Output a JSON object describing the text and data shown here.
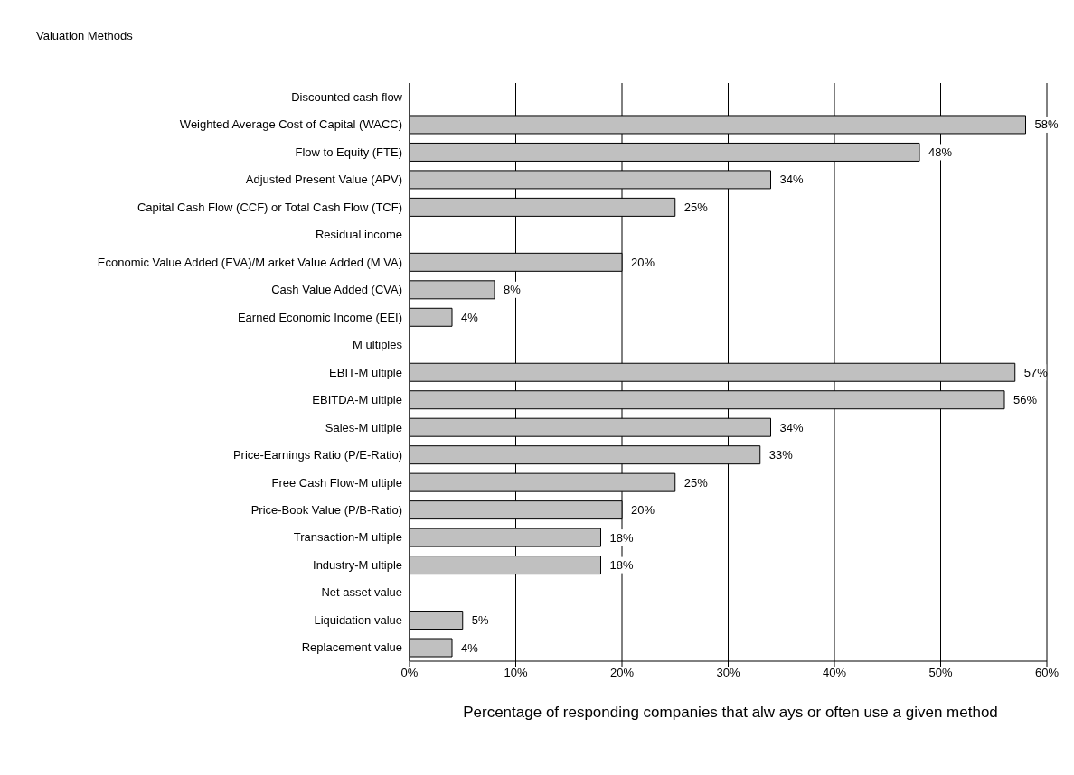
{
  "chart_data": {
    "type": "bar",
    "orientation": "horizontal",
    "title": "Valuation Methods",
    "xlabel": "Percentage of responding companies that alw ays or often use a given method",
    "categories": [
      "Discounted cash flow",
      "Weighted Average Cost of Capital (WACC)",
      "Flow to Equity (FTE)",
      "Adjusted Present Value (APV)",
      "Capital Cash Flow (CCF) or Total Cash Flow (TCF)",
      "Residual income",
      "Economic Value Added (EVA)/M arket Value Added (M VA)",
      "Cash Value Added (CVA)",
      "Earned Economic Income (EEI)",
      "M ultiples",
      "EBIT-M ultiple",
      "EBITDA-M ultiple",
      "Sales-M ultiple",
      "Price-Earnings Ratio (P/E-Ratio)",
      "Free Cash Flow-M ultiple",
      "Price-Book Value (P/B-Ratio)",
      "Transaction-M ultiple",
      "Industry-M ultiple",
      "Net asset value",
      "Liquidation value",
      "Replacement value"
    ],
    "values": [
      null,
      58,
      48,
      34,
      25,
      null,
      20,
      8,
      4,
      null,
      57,
      56,
      34,
      33,
      25,
      20,
      18,
      18,
      null,
      5,
      4
    ],
    "value_labels": [
      null,
      "58%",
      "48%",
      "34%",
      "25%",
      null,
      "20%",
      "8%",
      "4%",
      null,
      "57%",
      "56%",
      "34%",
      "33%",
      "25%",
      "20%",
      "18%",
      "18%",
      null,
      "5%",
      "4%"
    ],
    "color": "#c0c0c0",
    "xlim": [
      0,
      60
    ],
    "xticks": [
      {
        "value": 0,
        "label": "0%"
      },
      {
        "value": 10,
        "label": "10%"
      },
      {
        "value": 20,
        "label": "20%"
      },
      {
        "value": 30,
        "label": "30%"
      },
      {
        "value": 40,
        "label": "40%"
      },
      {
        "value": 50,
        "label": "50%"
      },
      {
        "value": 60,
        "label": "60%"
      }
    ],
    "grid": "x"
  }
}
